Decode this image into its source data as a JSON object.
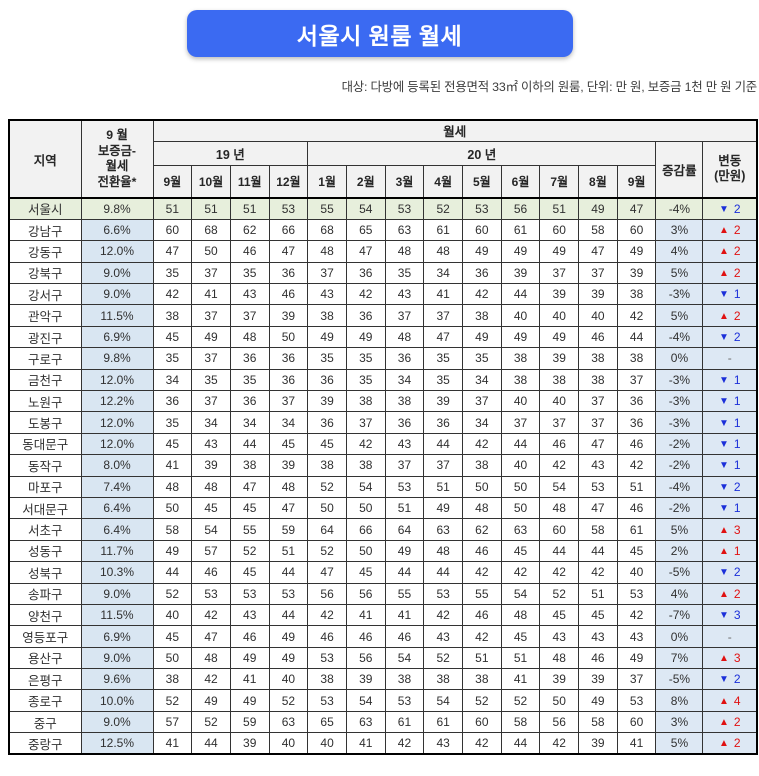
{
  "title": "서울시 원룸 월세",
  "subtitle": "대상: 다방에 등록된 전용면적 33㎡ 이하의 원룸, 단위: 만 원, 보증금 1천 만 원 기준",
  "colors": {
    "banner": "#3B6AF2",
    "header_bg": "#F2F2F2",
    "seoul_row_bg": "#E7EFDC",
    "blue_col_bg": "#DDE8F4",
    "rate_col_bg": "#D9E6F2",
    "up_red": "#E01111",
    "down_blue": "#1B2FD9",
    "border": "#333333"
  },
  "icons": {
    "up_arrow": "▲",
    "down_arrow": "▼",
    "dash": "-"
  },
  "table": {
    "header": {
      "region": "지역",
      "conversion_lines": [
        "9 월",
        "보증금-",
        "월세",
        "전환율*"
      ],
      "rent": "월세",
      "year19": "19 년",
      "year20": "20 년",
      "months": [
        "9월",
        "10월",
        "11월",
        "12월",
        "1월",
        "2월",
        "3월",
        "4월",
        "5월",
        "6월",
        "7월",
        "8월",
        "9월"
      ],
      "change_rate": "증감률",
      "change_amount_lines": [
        "변동",
        "(만원)"
      ]
    }
  },
  "chart_data": {
    "type": "table",
    "title": "서울시 원룸 월세",
    "unit": "만 원",
    "categories": [
      "19년 9월",
      "19년 10월",
      "19년 11월",
      "19년 12월",
      "20년 1월",
      "20년 2월",
      "20년 3월",
      "20년 4월",
      "20년 5월",
      "20년 6월",
      "20년 7월",
      "20년 8월",
      "20년 9월"
    ],
    "rows": [
      {
        "region": "서울시",
        "conversion_rate": "9.8%",
        "rent": [
          51,
          51,
          51,
          53,
          55,
          54,
          53,
          52,
          53,
          56,
          51,
          49,
          47
        ],
        "change_rate": "-4%",
        "change_dir": "down",
        "change_amount": "2",
        "highlight": true
      },
      {
        "region": "강남구",
        "conversion_rate": "6.6%",
        "rent": [
          60,
          68,
          62,
          66,
          68,
          65,
          63,
          61,
          60,
          61,
          60,
          58,
          60
        ],
        "change_rate": "3%",
        "change_dir": "up",
        "change_amount": "2",
        "highlight": false
      },
      {
        "region": "강동구",
        "conversion_rate": "12.0%",
        "rent": [
          47,
          50,
          46,
          47,
          48,
          47,
          48,
          48,
          49,
          49,
          49,
          47,
          49
        ],
        "change_rate": "4%",
        "change_dir": "up",
        "change_amount": "2",
        "highlight": false
      },
      {
        "region": "강북구",
        "conversion_rate": "9.0%",
        "rent": [
          35,
          37,
          35,
          36,
          37,
          36,
          35,
          34,
          36,
          39,
          37,
          37,
          39
        ],
        "change_rate": "5%",
        "change_dir": "up",
        "change_amount": "2",
        "highlight": false
      },
      {
        "region": "강서구",
        "conversion_rate": "9.0%",
        "rent": [
          42,
          41,
          43,
          46,
          43,
          42,
          43,
          41,
          42,
          44,
          39,
          39,
          38
        ],
        "change_rate": "-3%",
        "change_dir": "down",
        "change_amount": "1",
        "highlight": false
      },
      {
        "region": "관악구",
        "conversion_rate": "11.5%",
        "rent": [
          38,
          37,
          37,
          39,
          38,
          36,
          37,
          37,
          38,
          40,
          40,
          40,
          42
        ],
        "change_rate": "5%",
        "change_dir": "up",
        "change_amount": "2",
        "highlight": false
      },
      {
        "region": "광진구",
        "conversion_rate": "6.9%",
        "rent": [
          45,
          49,
          48,
          50,
          49,
          49,
          48,
          47,
          49,
          49,
          49,
          46,
          44
        ],
        "change_rate": "-4%",
        "change_dir": "down",
        "change_amount": "2",
        "highlight": false
      },
      {
        "region": "구로구",
        "conversion_rate": "9.8%",
        "rent": [
          35,
          37,
          36,
          36,
          35,
          35,
          36,
          35,
          35,
          38,
          39,
          38,
          38
        ],
        "change_rate": "0%",
        "change_dir": "none",
        "change_amount": "-",
        "highlight": false
      },
      {
        "region": "금천구",
        "conversion_rate": "12.0%",
        "rent": [
          34,
          35,
          35,
          36,
          36,
          35,
          34,
          35,
          34,
          38,
          38,
          38,
          37
        ],
        "change_rate": "-3%",
        "change_dir": "down",
        "change_amount": "1",
        "highlight": false
      },
      {
        "region": "노원구",
        "conversion_rate": "12.2%",
        "rent": [
          36,
          37,
          36,
          37,
          39,
          38,
          38,
          39,
          37,
          40,
          40,
          37,
          36
        ],
        "change_rate": "-3%",
        "change_dir": "down",
        "change_amount": "1",
        "highlight": false
      },
      {
        "region": "도봉구",
        "conversion_rate": "12.0%",
        "rent": [
          35,
          34,
          34,
          34,
          36,
          37,
          36,
          36,
          34,
          37,
          37,
          37,
          36
        ],
        "change_rate": "-3%",
        "change_dir": "down",
        "change_amount": "1",
        "highlight": false
      },
      {
        "region": "동대문구",
        "conversion_rate": "12.0%",
        "rent": [
          45,
          43,
          44,
          45,
          45,
          42,
          43,
          44,
          42,
          44,
          46,
          47,
          46
        ],
        "change_rate": "-2%",
        "change_dir": "down",
        "change_amount": "1",
        "highlight": false
      },
      {
        "region": "동작구",
        "conversion_rate": "8.0%",
        "rent": [
          41,
          39,
          38,
          39,
          38,
          38,
          37,
          37,
          38,
          40,
          42,
          43,
          42
        ],
        "change_rate": "-2%",
        "change_dir": "down",
        "change_amount": "1",
        "highlight": false
      },
      {
        "region": "마포구",
        "conversion_rate": "7.4%",
        "rent": [
          48,
          48,
          47,
          48,
          52,
          54,
          53,
          51,
          50,
          50,
          54,
          53,
          51
        ],
        "change_rate": "-4%",
        "change_dir": "down",
        "change_amount": "2",
        "highlight": false
      },
      {
        "region": "서대문구",
        "conversion_rate": "6.4%",
        "rent": [
          50,
          45,
          45,
          47,
          50,
          50,
          51,
          49,
          48,
          50,
          48,
          47,
          46
        ],
        "change_rate": "-2%",
        "change_dir": "down",
        "change_amount": "1",
        "highlight": false
      },
      {
        "region": "서초구",
        "conversion_rate": "6.4%",
        "rent": [
          58,
          54,
          55,
          59,
          64,
          66,
          64,
          63,
          62,
          63,
          60,
          58,
          61
        ],
        "change_rate": "5%",
        "change_dir": "up",
        "change_amount": "3",
        "highlight": false
      },
      {
        "region": "성동구",
        "conversion_rate": "11.7%",
        "rent": [
          49,
          57,
          52,
          51,
          52,
          50,
          49,
          48,
          46,
          45,
          44,
          44,
          45
        ],
        "change_rate": "2%",
        "change_dir": "up",
        "change_amount": "1",
        "highlight": false
      },
      {
        "region": "성북구",
        "conversion_rate": "10.3%",
        "rent": [
          44,
          46,
          45,
          44,
          47,
          45,
          44,
          44,
          42,
          42,
          42,
          42,
          40
        ],
        "change_rate": "-5%",
        "change_dir": "down",
        "change_amount": "2",
        "highlight": false
      },
      {
        "region": "송파구",
        "conversion_rate": "9.0%",
        "rent": [
          52,
          53,
          53,
          53,
          56,
          56,
          55,
          53,
          55,
          54,
          52,
          51,
          53
        ],
        "change_rate": "4%",
        "change_dir": "up",
        "change_amount": "2",
        "highlight": false
      },
      {
        "region": "양천구",
        "conversion_rate": "11.5%",
        "rent": [
          40,
          42,
          43,
          44,
          42,
          41,
          41,
          42,
          46,
          48,
          45,
          45,
          42
        ],
        "change_rate": "-7%",
        "change_dir": "down",
        "change_amount": "3",
        "highlight": false
      },
      {
        "region": "영등포구",
        "conversion_rate": "6.9%",
        "rent": [
          45,
          47,
          46,
          49,
          46,
          46,
          46,
          43,
          42,
          45,
          43,
          43,
          43
        ],
        "change_rate": "0%",
        "change_dir": "none",
        "change_amount": "-",
        "highlight": false
      },
      {
        "region": "용산구",
        "conversion_rate": "9.0%",
        "rent": [
          50,
          48,
          49,
          49,
          53,
          56,
          54,
          52,
          51,
          51,
          48,
          46,
          49
        ],
        "change_rate": "7%",
        "change_dir": "up",
        "change_amount": "3",
        "highlight": false
      },
      {
        "region": "은평구",
        "conversion_rate": "9.6%",
        "rent": [
          38,
          42,
          41,
          40,
          38,
          39,
          38,
          38,
          38,
          41,
          39,
          39,
          37
        ],
        "change_rate": "-5%",
        "change_dir": "down",
        "change_amount": "2",
        "highlight": false
      },
      {
        "region": "종로구",
        "conversion_rate": "10.0%",
        "rent": [
          52,
          49,
          49,
          52,
          53,
          54,
          53,
          54,
          52,
          52,
          50,
          49,
          53
        ],
        "change_rate": "8%",
        "change_dir": "up",
        "change_amount": "4",
        "highlight": false
      },
      {
        "region": "중구",
        "conversion_rate": "9.0%",
        "rent": [
          57,
          52,
          59,
          63,
          65,
          63,
          61,
          61,
          60,
          58,
          56,
          58,
          60
        ],
        "change_rate": "3%",
        "change_dir": "up",
        "change_amount": "2",
        "highlight": false
      },
      {
        "region": "중랑구",
        "conversion_rate": "12.5%",
        "rent": [
          41,
          44,
          39,
          40,
          40,
          41,
          42,
          43,
          42,
          44,
          42,
          39,
          41
        ],
        "change_rate": "5%",
        "change_dir": "up",
        "change_amount": "2",
        "highlight": false
      }
    ]
  }
}
